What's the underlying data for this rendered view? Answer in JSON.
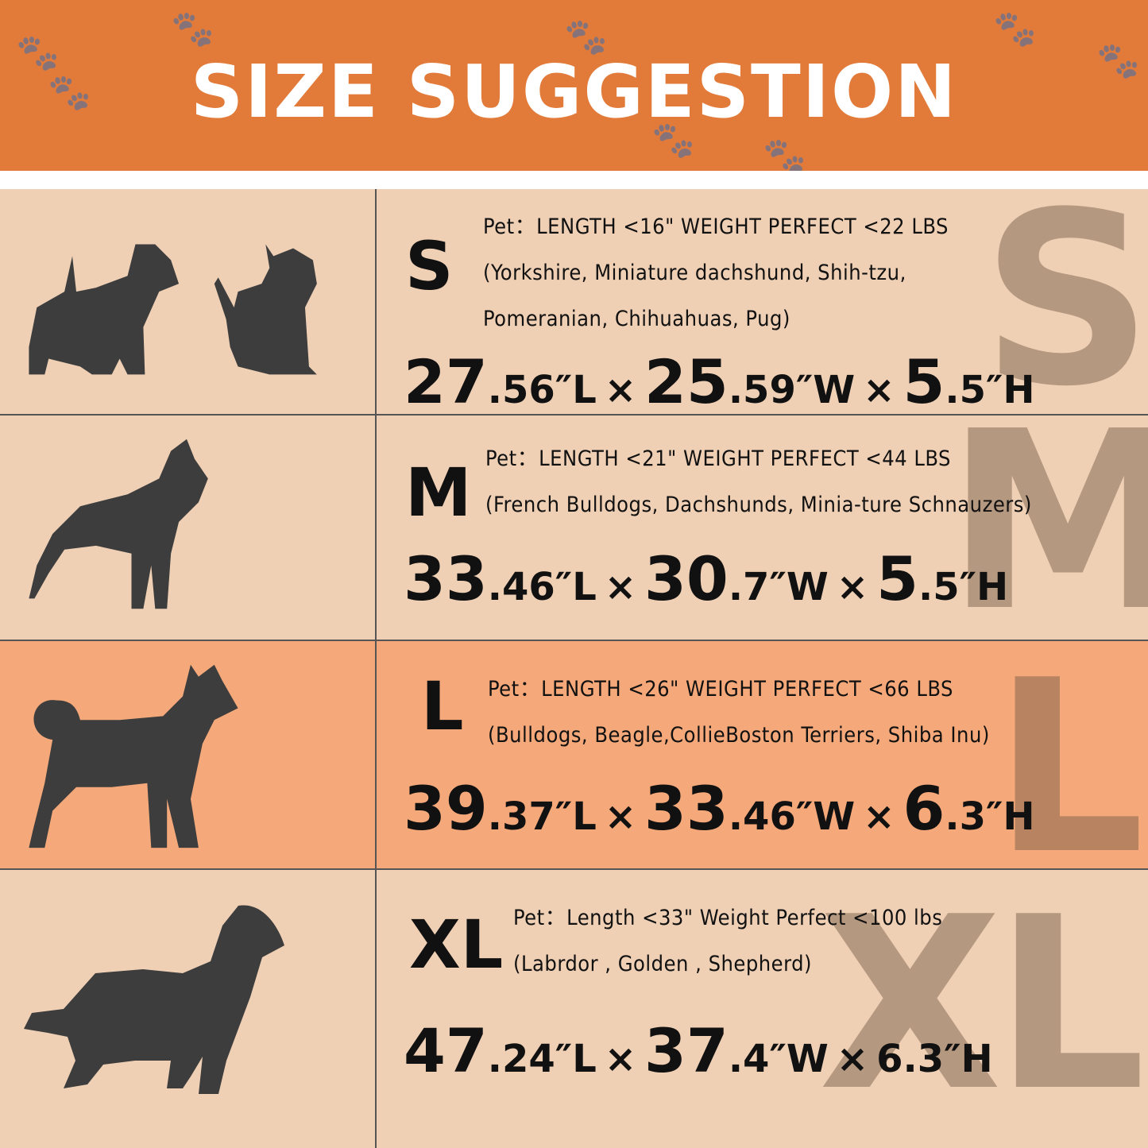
{
  "header": {
    "title": "SIZE SUGGESTION",
    "bg": "#e27b3a"
  },
  "rows": [
    {
      "size": "S",
      "watermark": "S",
      "pet_line": "Pet：LENGTH <16\"  WEIGHT PERFECT <22 LBS",
      "breeds": [
        "(Yorkshire, Miniature dachshund, Shih-tzu,",
        "Pomeranian, Chihuahuas, Pug)"
      ],
      "icons": [
        "terrier-silhouette-icon",
        "cat-silhouette-icon"
      ],
      "dims": [
        {
          "whole": "27",
          "frac": ".56",
          "unit": "″L"
        },
        {
          "whole": "25",
          "frac": ".59",
          "unit": "″W"
        },
        {
          "whole": "5",
          "frac": ".5",
          "unit": "″H"
        }
      ]
    },
    {
      "size": "M",
      "watermark": "M",
      "pet_line": "Pet：LENGTH <21\"  WEIGHT PERFECT <44 LBS",
      "breeds": [
        "(French Bulldogs, Dachshunds, Minia-ture Schnauzers)"
      ],
      "icons": [
        "bulldog-silhouette-icon"
      ],
      "dims": [
        {
          "whole": "33",
          "frac": ".46",
          "unit": "″L"
        },
        {
          "whole": "30",
          "frac": ".7",
          "unit": "″W"
        },
        {
          "whole": "5",
          "frac": ".5",
          "unit": "″H"
        }
      ]
    },
    {
      "size": "L",
      "watermark": "L",
      "pet_line": "Pet：LENGTH <26\" WEIGHT PERFECT <66 LBS",
      "breeds": [
        "(Bulldogs, Beagle,CollieBoston Terriers, Shiba Inu)"
      ],
      "icons": [
        "shiba-silhouette-icon"
      ],
      "dims": [
        {
          "whole": "39",
          "frac": ".37",
          "unit": "″L"
        },
        {
          "whole": "33",
          "frac": ".46",
          "unit": "″W"
        },
        {
          "whole": "6",
          "frac": ".3",
          "unit": "″H"
        }
      ]
    },
    {
      "size": "XL",
      "watermark": "XL",
      "pet_line": "Pet：Length <33\"  Weight Perfect <100 lbs",
      "breeds": [
        "(Labrdor , Golden ,  Shepherd)"
      ],
      "icons": [
        "golden-retriever-silhouette-icon"
      ],
      "dims": [
        {
          "whole": "47",
          "frac": ".24",
          "unit": "″L"
        },
        {
          "whole": "37",
          "frac": ".4",
          "unit": "″W"
        },
        {
          "whole": "6.3",
          "frac": "",
          "unit": "″H"
        }
      ]
    }
  ],
  "separator": "×",
  "colors": {
    "row_bg": "#efd0b5",
    "highlight_bg": "#f5a97a",
    "silhouette": "#3d3d3d"
  }
}
